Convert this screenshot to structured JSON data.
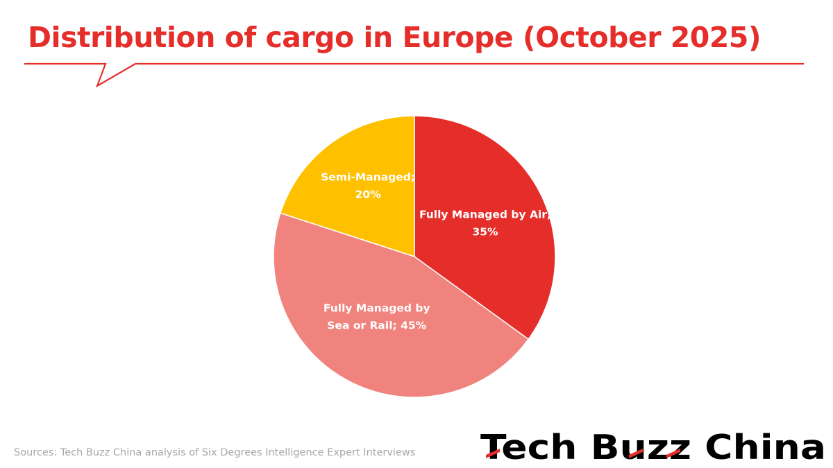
{
  "header": {
    "title": "Distribution of cargo in Europe (October 2025)"
  },
  "chart_data": {
    "type": "pie",
    "title": "Distribution of cargo in Europe (October 2025)",
    "slices": [
      {
        "name": "Fully Managed by Air",
        "value": 35,
        "label_lines": [
          "Fully Managed by Air;",
          "35%"
        ],
        "color": "#e52e2a"
      },
      {
        "name": "Fully Managed by Sea or Rail",
        "value": 45,
        "label_lines": [
          "Fully Managed by",
          "Sea or Rail; 45%"
        ],
        "color": "#f0837d"
      },
      {
        "name": "Semi-Managed",
        "value": 20,
        "label_lines": [
          "Semi-Managed;",
          "20%"
        ],
        "color": "#ffc000"
      }
    ],
    "start": "12 o'clock",
    "direction": "clockwise",
    "legend": "none"
  },
  "footer": {
    "source": "Sources: Tech Buzz China analysis of Six Degrees Intelligence Expert Interviews",
    "logo_text": "Tech Buzz China"
  },
  "colors": {
    "accent": "#e52e2a",
    "source_text": "#a6a6a6",
    "logo_text": "#000000"
  }
}
